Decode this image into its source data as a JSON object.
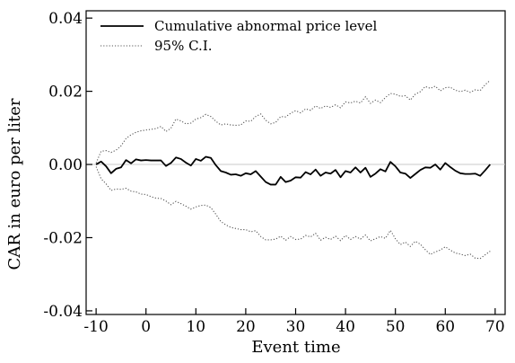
{
  "chart_data": {
    "type": "line",
    "title": "",
    "xlabel": "Event time",
    "ylabel": "CAR in euro per liter",
    "xlim": [
      -12,
      72
    ],
    "ylim": [
      -0.041,
      0.042
    ],
    "x_ticks": [
      -10,
      0,
      10,
      20,
      30,
      40,
      50,
      60,
      70
    ],
    "x_tick_labels": [
      "-10",
      "0",
      "10",
      "20",
      "30",
      "40",
      "50",
      "60",
      "70"
    ],
    "y_ticks": [
      -0.04,
      -0.02,
      0.0,
      0.02,
      0.04
    ],
    "y_tick_labels": [
      "-0.04",
      "-0.02",
      "0.00",
      "0.02",
      "0.04"
    ],
    "reference_line": 0,
    "reference_line_color": "#c8c8c8",
    "grid": false,
    "legend_position": "top-left",
    "x_start": -10,
    "x_step": 1,
    "series": [
      {
        "name": "Cumulative abnormal price level",
        "style": "solid",
        "color": "#000000",
        "values": [
          0.0,
          0.0008,
          -0.0005,
          -0.0024,
          -0.0012,
          -0.0008,
          0.0012,
          0.0003,
          0.0014,
          0.0011,
          0.0012,
          0.0011,
          0.0011,
          0.0011,
          -0.0004,
          0.0004,
          0.0019,
          0.0015,
          0.0005,
          -0.0003,
          0.0015,
          0.001,
          0.0021,
          0.0018,
          -0.0002,
          -0.0018,
          -0.0022,
          -0.0028,
          -0.0027,
          -0.0031,
          -0.0024,
          -0.0027,
          -0.0018,
          -0.0033,
          -0.0048,
          -0.0055,
          -0.0055,
          -0.0034,
          -0.0048,
          -0.0044,
          -0.0035,
          -0.0036,
          -0.0021,
          -0.0027,
          -0.0014,
          -0.0031,
          -0.0022,
          -0.0025,
          -0.0015,
          -0.0035,
          -0.0018,
          -0.0022,
          -0.0008,
          -0.0022,
          -0.0009,
          -0.0034,
          -0.0025,
          -0.0013,
          -0.0019,
          0.0007,
          -0.0005,
          -0.0022,
          -0.0025,
          -0.0037,
          -0.0026,
          -0.0015,
          -0.0008,
          -0.0009,
          0.0,
          -0.0014,
          0.0004,
          -0.0007,
          -0.0017,
          -0.0024,
          -0.0026,
          -0.0026,
          -0.0025,
          -0.0031,
          -0.0016,
          0.0
        ]
      },
      {
        "name": "95% C.I.",
        "style": "dotted",
        "color": "#555555",
        "upper": [
          0.0004,
          0.0036,
          0.0038,
          0.0033,
          0.0039,
          0.0051,
          0.0071,
          0.0081,
          0.0088,
          0.0092,
          0.0094,
          0.0096,
          0.0098,
          0.0104,
          0.009,
          0.0099,
          0.0124,
          0.0119,
          0.0111,
          0.0113,
          0.0124,
          0.0128,
          0.0137,
          0.0131,
          0.0118,
          0.0108,
          0.0111,
          0.0108,
          0.0107,
          0.0108,
          0.0119,
          0.0118,
          0.0131,
          0.0138,
          0.0121,
          0.0111,
          0.0115,
          0.0131,
          0.013,
          0.014,
          0.0147,
          0.0141,
          0.0152,
          0.0148,
          0.016,
          0.0153,
          0.016,
          0.0156,
          0.0163,
          0.0155,
          0.0171,
          0.0168,
          0.0173,
          0.0168,
          0.0185,
          0.0167,
          0.0176,
          0.0169,
          0.0183,
          0.0194,
          0.0192,
          0.0186,
          0.0188,
          0.0176,
          0.0192,
          0.0199,
          0.0213,
          0.0208,
          0.0214,
          0.0201,
          0.021,
          0.0211,
          0.0203,
          0.0199,
          0.0203,
          0.0197,
          0.0204,
          0.0202,
          0.0218,
          0.023
        ],
        "lower": [
          -0.0006,
          -0.0039,
          -0.0053,
          -0.0071,
          -0.0067,
          -0.0068,
          -0.0065,
          -0.0073,
          -0.0075,
          -0.0081,
          -0.0082,
          -0.0088,
          -0.0092,
          -0.0093,
          -0.01,
          -0.011,
          -0.0101,
          -0.0107,
          -0.0114,
          -0.0122,
          -0.0116,
          -0.0112,
          -0.0111,
          -0.0118,
          -0.0136,
          -0.0156,
          -0.0165,
          -0.0172,
          -0.0175,
          -0.0178,
          -0.0178,
          -0.0184,
          -0.0181,
          -0.0197,
          -0.0206,
          -0.0206,
          -0.0204,
          -0.0196,
          -0.0207,
          -0.0197,
          -0.0205,
          -0.0204,
          -0.0194,
          -0.0198,
          -0.0188,
          -0.0207,
          -0.0199,
          -0.0205,
          -0.0196,
          -0.0208,
          -0.0194,
          -0.0205,
          -0.0197,
          -0.0204,
          -0.0193,
          -0.0209,
          -0.0203,
          -0.0197,
          -0.0202,
          -0.018,
          -0.0203,
          -0.0219,
          -0.0212,
          -0.0224,
          -0.021,
          -0.0218,
          -0.0233,
          -0.0246,
          -0.0239,
          -0.0234,
          -0.0225,
          -0.0234,
          -0.0242,
          -0.0245,
          -0.0249,
          -0.0245,
          -0.0256,
          -0.0257,
          -0.0247,
          -0.0237
        ]
      }
    ]
  }
}
